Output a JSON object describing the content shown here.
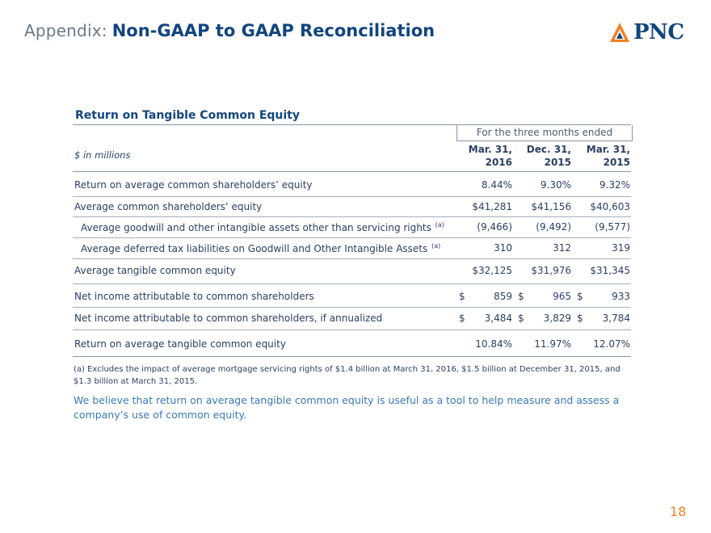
{
  "header": {
    "prefix": "Appendix:",
    "title": "Non-GAAP to GAAP Reconciliation"
  },
  "logo": {
    "text": "PNC",
    "accent_color": "#f58025",
    "brand_color": "#12457f",
    "icon": "pnc-triangle-logo-icon"
  },
  "section_title": "Return on Tangible Common Equity",
  "table": {
    "units_label": "$ in millions",
    "period_label": "For the three months ended",
    "columns": [
      {
        "line1": "Mar. 31,",
        "line2": "2016"
      },
      {
        "line1": "Dec. 31,",
        "line2": "2015"
      },
      {
        "line1": "Mar. 31,",
        "line2": "2015"
      }
    ],
    "rows": [
      {
        "label": "Return on average common shareholders’ equity",
        "values": [
          "8.44%",
          "9.30%",
          "9.32%"
        ]
      },
      {
        "label": "Average common shareholders’ equity",
        "values": [
          "$41,281",
          "$41,156",
          "$40,603"
        ]
      },
      {
        "label": "Average goodwill and other intangible assets other than servicing rights",
        "sup": "(a)",
        "values": [
          "(9,466)",
          "(9,492)",
          "(9,577)"
        ]
      },
      {
        "label": "Average deferred tax liabilities on Goodwill and Other Intangible Assets",
        "sup": "(a)",
        "values": [
          "310",
          "312",
          "319"
        ]
      },
      {
        "label": "Average tangible common equity",
        "values": [
          "$32,125",
          "$31,976",
          "$31,345"
        ]
      },
      {
        "label": "Net income attributable to common shareholders",
        "values": [
          "$ 859",
          "$ 965",
          "$ 933"
        ]
      },
      {
        "label": "Net income attributable to common shareholders, if annualized",
        "values": [
          "$ 3,484",
          "$ 3,829",
          "$ 3,784"
        ]
      },
      {
        "label": "Return on average tangible common equity",
        "values": [
          "10.84%",
          "11.97%",
          "12.07%"
        ]
      }
    ]
  },
  "footnote": "(a) Excludes the impact of average mortgage servicing rights of $1.4 billion at March 31, 2016, $1.5 billion at December 31, 2015, and $1.3 billion at March 31, 2015.",
  "statement": "We believe that return on average tangible common equity is useful as a tool to help measure and assess a company’s use of common equity.",
  "page_number": "18"
}
